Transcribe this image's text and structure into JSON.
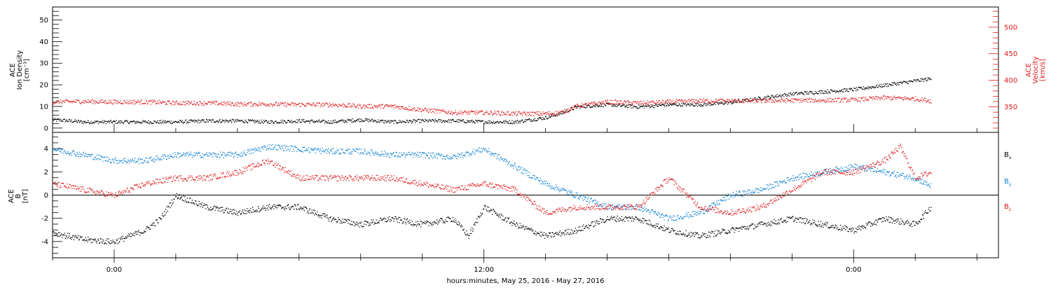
{
  "caption": "hours:minutes, May 25, 2016 - May 27, 2016",
  "colors": {
    "black": "#000000",
    "red": "#e0191c",
    "blue": "#0a7fd6"
  },
  "chart_data": [
    {
      "type": "scatter",
      "panel": "top",
      "ylabel_left": [
        "ACE",
        "Ion Density",
        "[cm⁻³]"
      ],
      "ylabel_right": [
        "ACE",
        "Velocity",
        "[km/s]"
      ],
      "left_ticks": [
        0,
        10,
        20,
        30,
        40,
        50
      ],
      "left_ylim": [
        -2,
        56
      ],
      "right_ticks": [
        350,
        400,
        450,
        500
      ],
      "right_ylim": [
        302,
        538
      ],
      "x_ticks_hours": [
        0,
        12,
        24
      ],
      "x_tick_labels": [
        "0:00",
        "12:00",
        "0:00"
      ],
      "xlim_hours": [
        -2,
        28.7
      ],
      "series": [
        {
          "color": "black",
          "axis": "left",
          "points": [
            [
              -2.0,
              4
            ],
            [
              -1.5,
              3.6
            ],
            [
              -1,
              3
            ],
            [
              0,
              3
            ],
            [
              1,
              3
            ],
            [
              2,
              3
            ],
            [
              3,
              3.5
            ],
            [
              4,
              3.5
            ],
            [
              5,
              3
            ],
            [
              6,
              3.5
            ],
            [
              7,
              3
            ],
            [
              8,
              4
            ],
            [
              9,
              3
            ],
            [
              10,
              3.5
            ],
            [
              11,
              3.5
            ],
            [
              12,
              3
            ],
            [
              13,
              3
            ],
            [
              14,
              5
            ],
            [
              14.5,
              7
            ],
            [
              15,
              10
            ],
            [
              16,
              11
            ],
            [
              17,
              10
            ],
            [
              18,
              11
            ],
            [
              19,
              11
            ],
            [
              20,
              12
            ],
            [
              21,
              14
            ],
            [
              22,
              16
            ],
            [
              23,
              17
            ],
            [
              24,
              18
            ],
            [
              25,
              20
            ],
            [
              26,
              22
            ],
            [
              26.5,
              23
            ]
          ]
        },
        {
          "color": "red",
          "axis": "right",
          "points": [
            [
              -2.0,
              360
            ],
            [
              -1,
              361
            ],
            [
              0,
              360
            ],
            [
              1,
              360
            ],
            [
              2,
              358
            ],
            [
              3,
              358
            ],
            [
              4,
              356
            ],
            [
              5,
              356
            ],
            [
              6,
              355
            ],
            [
              7,
              355
            ],
            [
              8,
              352
            ],
            [
              9,
              352
            ],
            [
              10,
              345
            ],
            [
              11,
              340
            ],
            [
              12,
              340
            ],
            [
              13,
              338
            ],
            [
              14,
              338
            ],
            [
              14.5,
              340
            ],
            [
              15,
              352
            ],
            [
              16,
              360
            ],
            [
              17,
              358
            ],
            [
              18,
              360
            ],
            [
              19,
              362
            ],
            [
              20,
              362
            ],
            [
              21,
              362
            ],
            [
              22,
              363
            ],
            [
              23,
              363
            ],
            [
              24,
              364
            ],
            [
              25,
              368
            ],
            [
              26,
              366
            ],
            [
              26.5,
              362
            ]
          ]
        }
      ]
    },
    {
      "type": "scatter",
      "panel": "bottom",
      "ylabel_left": [
        "ACE",
        "B",
        "[nT]"
      ],
      "ticks": [
        -4,
        -2,
        0,
        2,
        4
      ],
      "ylim": [
        -5.4,
        5.4
      ],
      "x_ticks_hours": [
        0,
        12,
        24
      ],
      "x_tick_labels": [
        "0:00",
        "12:00",
        "0:00"
      ],
      "xlim_hours": [
        -2,
        28.7
      ],
      "series": [
        {
          "name": "Bx",
          "color": "black",
          "points": [
            [
              -2,
              -3.2
            ],
            [
              -1,
              -3.8
            ],
            [
              0,
              -4
            ],
            [
              1,
              -3
            ],
            [
              1.5,
              -2
            ],
            [
              2,
              0
            ],
            [
              2.5,
              -0.5
            ],
            [
              3,
              -1
            ],
            [
              4,
              -1.5
            ],
            [
              5,
              -1
            ],
            [
              6,
              -1
            ],
            [
              7,
              -2
            ],
            [
              8,
              -2.5
            ],
            [
              9,
              -2
            ],
            [
              10,
              -2.5
            ],
            [
              11,
              -2
            ],
            [
              11.5,
              -3.5
            ],
            [
              12,
              -1
            ],
            [
              13,
              -2.5
            ],
            [
              14,
              -3.5
            ],
            [
              15,
              -3
            ],
            [
              16,
              -2
            ],
            [
              17,
              -2
            ],
            [
              18,
              -3
            ],
            [
              19,
              -3.5
            ],
            [
              20,
              -3
            ],
            [
              21,
              -2.5
            ],
            [
              22,
              -2
            ],
            [
              23,
              -2.5
            ],
            [
              24,
              -3
            ],
            [
              25,
              -2
            ],
            [
              26,
              -2.5
            ],
            [
              26.5,
              -1
            ]
          ]
        },
        {
          "name": "By",
          "color": "blue",
          "points": [
            [
              -2,
              4
            ],
            [
              -1,
              3.5
            ],
            [
              0,
              3
            ],
            [
              1,
              3
            ],
            [
              2,
              3.5
            ],
            [
              3,
              3.5
            ],
            [
              4,
              3.5
            ],
            [
              5,
              4.2
            ],
            [
              6,
              4
            ],
            [
              7,
              3.8
            ],
            [
              8,
              3.8
            ],
            [
              9,
              3.5
            ],
            [
              10,
              3.5
            ],
            [
              11,
              3.3
            ],
            [
              12,
              4
            ],
            [
              13,
              2.5
            ],
            [
              14,
              1
            ],
            [
              15,
              0
            ],
            [
              16,
              -1
            ],
            [
              17,
              -1
            ],
            [
              18,
              -2
            ],
            [
              19,
              -1.5
            ],
            [
              20,
              0
            ],
            [
              21,
              0.5
            ],
            [
              22,
              1.5
            ],
            [
              23,
              2
            ],
            [
              24,
              2.5
            ],
            [
              25,
              2
            ],
            [
              26,
              1.5
            ],
            [
              26.5,
              0.8
            ]
          ]
        },
        {
          "name": "Bz",
          "color": "red",
          "points": [
            [
              -2,
              1
            ],
            [
              -1,
              0.5
            ],
            [
              0,
              0
            ],
            [
              1,
              1
            ],
            [
              2,
              1.5
            ],
            [
              3,
              1.5
            ],
            [
              4,
              2
            ],
            [
              5,
              3
            ],
            [
              6,
              1.5
            ],
            [
              7,
              1.5
            ],
            [
              8,
              1.5
            ],
            [
              9,
              1.5
            ],
            [
              10,
              1
            ],
            [
              11,
              0.5
            ],
            [
              12,
              1
            ],
            [
              13,
              0.5
            ],
            [
              14,
              -1.5
            ],
            [
              15,
              -1
            ],
            [
              16,
              -1
            ],
            [
              17,
              -1
            ],
            [
              18,
              1.5
            ],
            [
              19,
              -1
            ],
            [
              20,
              -1.5
            ],
            [
              21,
              -1
            ],
            [
              22,
              0.5
            ],
            [
              23,
              2
            ],
            [
              24,
              2
            ],
            [
              25,
              3
            ],
            [
              25.5,
              4.2
            ],
            [
              26,
              1.5
            ],
            [
              26.5,
              2
            ]
          ]
        }
      ],
      "legend": {
        "placement": "right",
        "items": [
          {
            "label": "Bx",
            "color": "black"
          },
          {
            "label": "By",
            "color": "blue"
          },
          {
            "label": "Bz",
            "color": "red"
          }
        ]
      }
    }
  ]
}
